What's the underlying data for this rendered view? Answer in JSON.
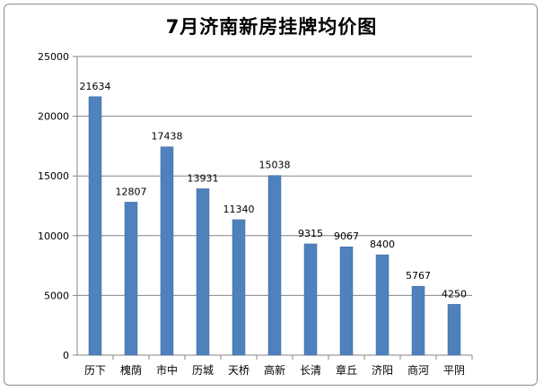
{
  "chart_data": {
    "type": "bar",
    "title": "7月济南新房挂牌均价图",
    "xlabel": "",
    "ylabel": "",
    "categories": [
      "历下",
      "槐荫",
      "市中",
      "历城",
      "天桥",
      "高新",
      "长清",
      "章丘",
      "济阳",
      "商河",
      "平阴"
    ],
    "values": [
      21634,
      12807,
      17438,
      13931,
      11340,
      15038,
      9315,
      9067,
      8400,
      5767,
      4250
    ],
    "ylim": [
      0,
      25000
    ],
    "yticks": [
      0,
      5000,
      10000,
      15000,
      20000,
      25000
    ],
    "grid": true,
    "legend": "none",
    "bar_color": "#4f81bd"
  }
}
